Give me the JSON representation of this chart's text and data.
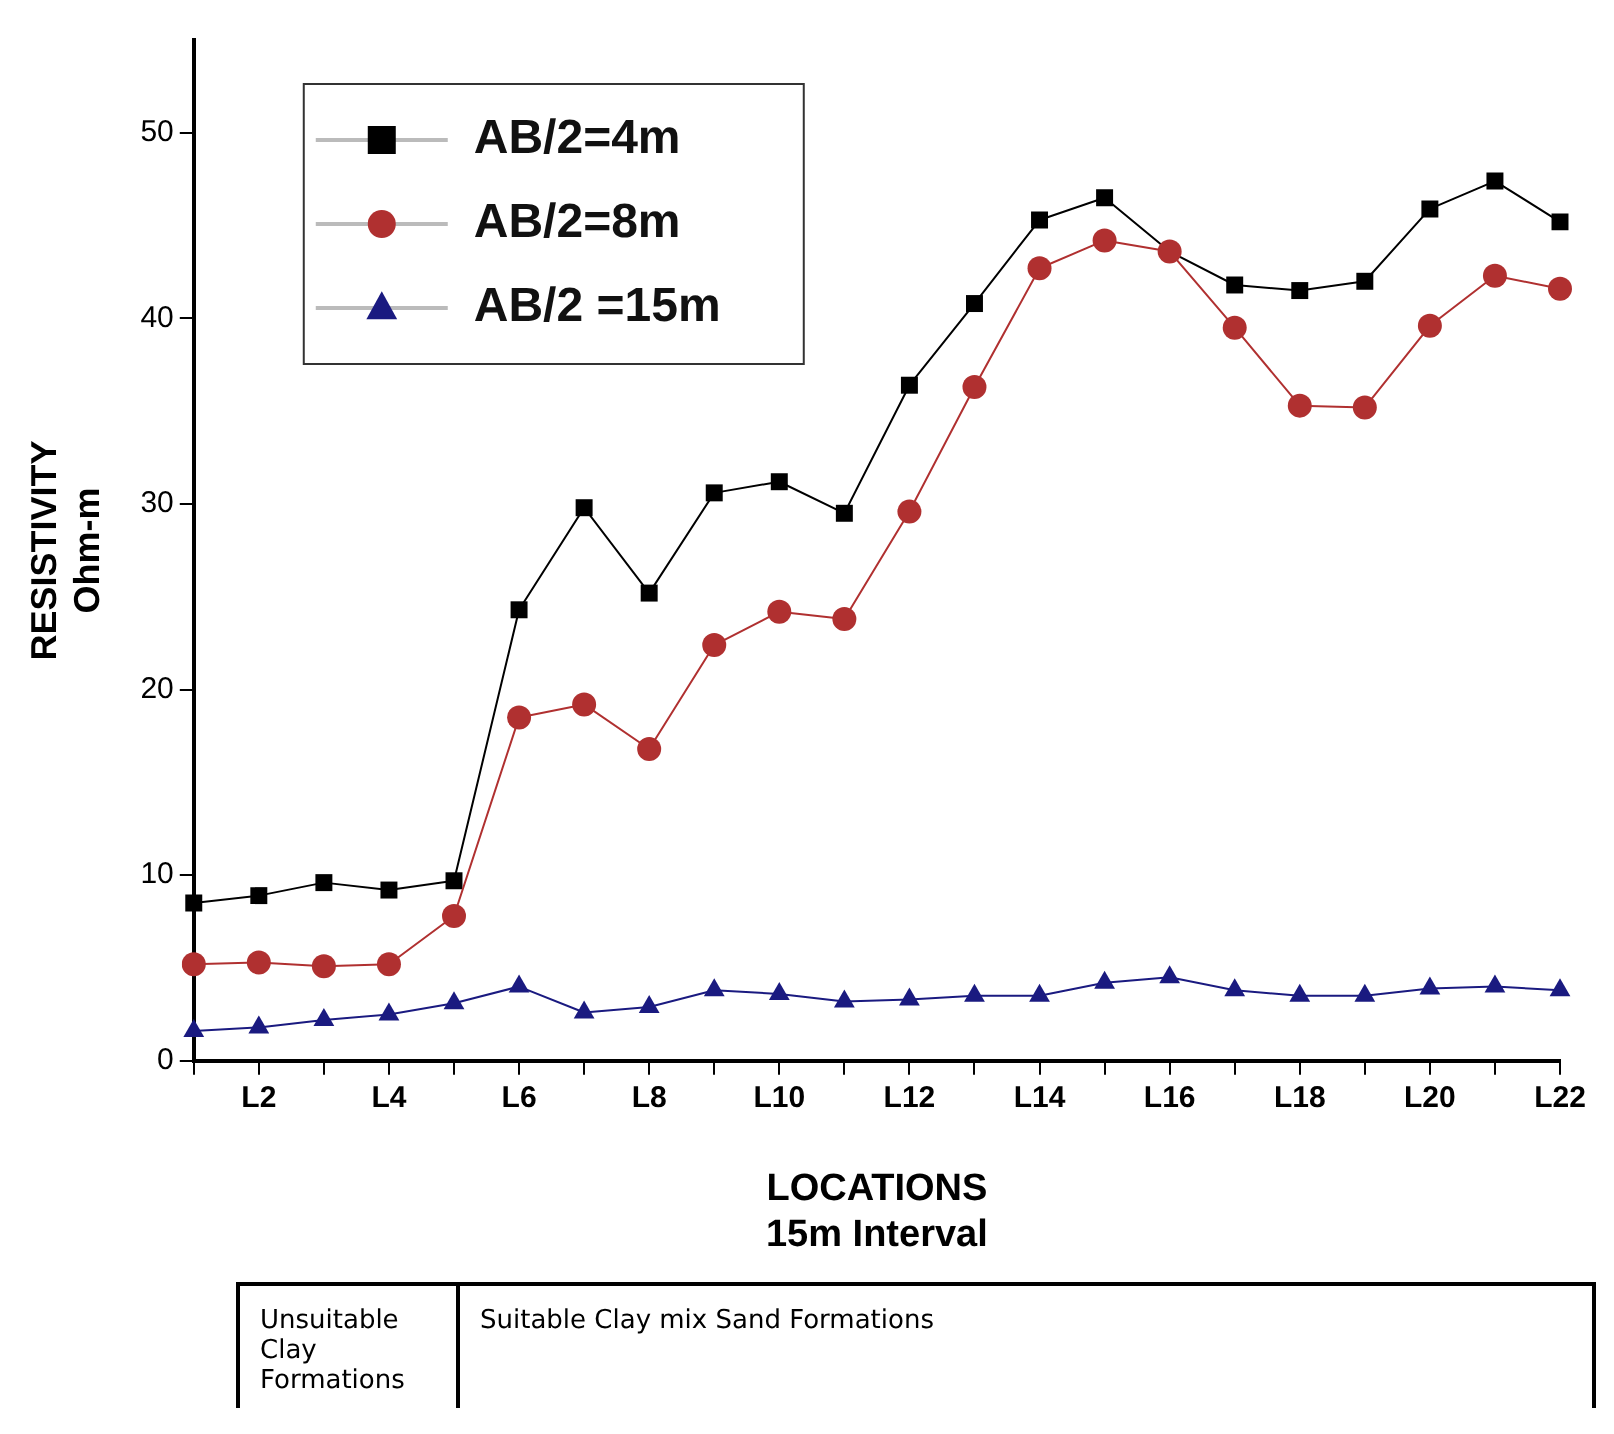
{
  "chart_data": {
    "type": "line",
    "xlabel": "LOCATIONS\n15m Interval",
    "ylabel": "RESISTIVITY\nOhm-m",
    "categories": [
      null,
      "L2",
      null,
      "L4",
      null,
      "L6",
      null,
      "L8",
      null,
      "L10",
      null,
      "L12",
      null,
      "L14",
      null,
      "L16",
      null,
      "L18",
      null,
      "L20",
      null,
      "L22"
    ],
    "series": [
      {
        "name": "AB/2=4m",
        "color": "#000000",
        "marker": "square",
        "values": [
          8.5,
          8.9,
          9.6,
          9.2,
          9.7,
          24.3,
          29.8,
          25.2,
          30.6,
          31.2,
          29.5,
          36.4,
          40.8,
          45.3,
          46.5,
          43.6,
          41.8,
          41.5,
          42.0,
          45.9,
          47.4,
          45.2
        ]
      },
      {
        "name": "AB/2=8m",
        "color": "#b03030",
        "marker": "circle",
        "values": [
          5.2,
          5.3,
          5.1,
          5.2,
          7.8,
          18.5,
          19.2,
          16.8,
          22.4,
          24.2,
          23.8,
          29.6,
          36.3,
          42.7,
          44.2,
          43.6,
          39.5,
          35.3,
          35.2,
          39.6,
          42.3,
          41.6
        ]
      },
      {
        "name": "AB/2 =15m",
        "color": "#1a1a80",
        "marker": "triangle",
        "values": [
          1.6,
          1.8,
          2.2,
          2.5,
          3.1,
          4.0,
          2.6,
          2.9,
          3.8,
          3.6,
          3.2,
          3.3,
          3.5,
          3.5,
          4.2,
          4.5,
          3.8,
          3.5,
          3.5,
          3.9,
          4.0,
          3.8
        ]
      }
    ],
    "ylim": [
      0,
      55
    ],
    "yticks": [
      0,
      10,
      20,
      30,
      40,
      50
    ],
    "grid": false,
    "legend": "top left",
    "annotations": [
      "Unsuitable Clay Formations",
      "Suitable Clay mix Sand Formations"
    ]
  }
}
